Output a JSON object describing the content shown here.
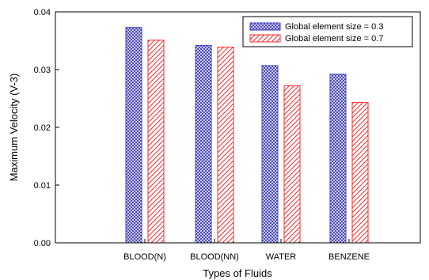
{
  "chart_data": {
    "type": "bar",
    "title": "",
    "xlabel": "Types of Fluids",
    "ylabel": "Maximum Velocity (V-3)",
    "ylim": [
      0,
      0.04
    ],
    "yticks": [
      "0.00",
      "0.01",
      "0.02",
      "0.03",
      "0.04"
    ],
    "categories": [
      "BLOOD(N)",
      "BLOOD(NN)",
      "WATER",
      "BENZENE"
    ],
    "series": [
      {
        "name": "Global element size = 0.3",
        "values": [
          0.0373,
          0.0342,
          0.0307,
          0.0292
        ],
        "color": "#3b3bbf",
        "pattern": "crosshatch"
      },
      {
        "name": "Global element size = 0.7",
        "values": [
          0.0351,
          0.0339,
          0.0272,
          0.0243
        ],
        "color": "#ff2a2a",
        "pattern": "diagonal"
      }
    ],
    "grid": false,
    "legend_position": "top-right"
  }
}
